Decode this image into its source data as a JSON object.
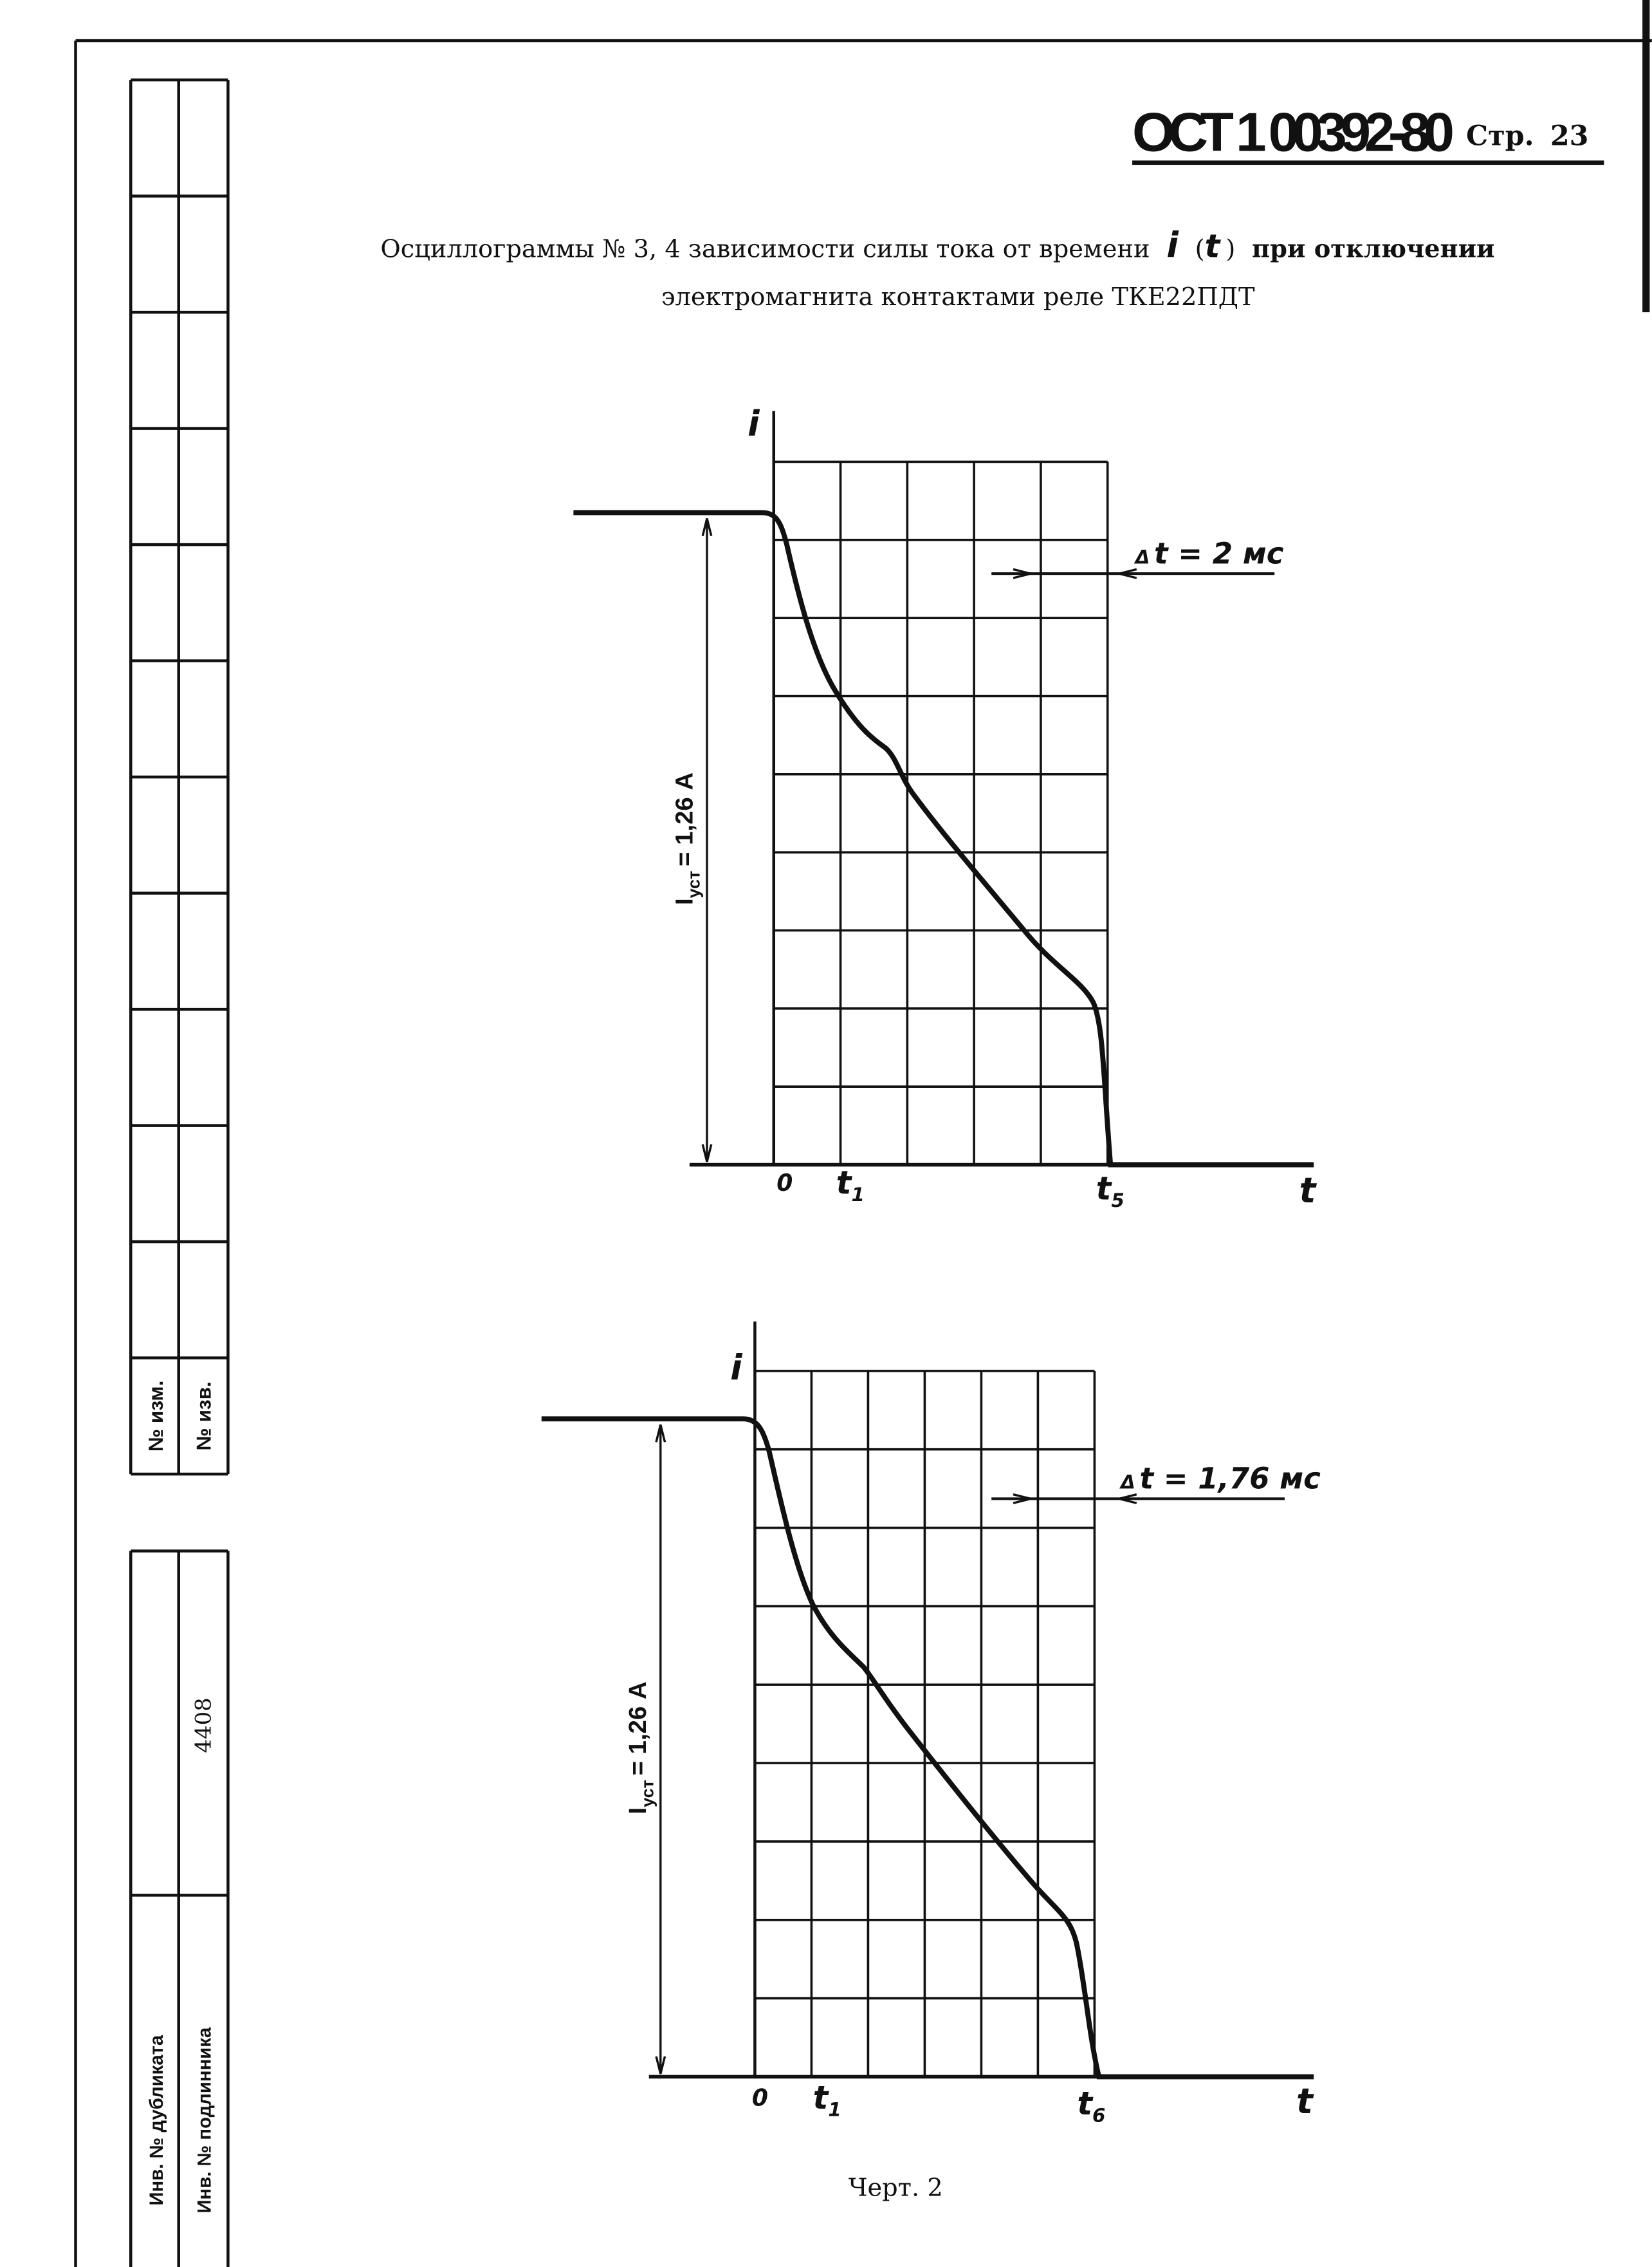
{
  "header": {
    "code": "ОСТ 1 00392-80",
    "page_label": "Стр.",
    "page_number": "23"
  },
  "title": {
    "line1": [
      "Осциллограммы № 3, 4 зависимости силы тока от времени",
      "i",
      "(",
      "t",
      ")",
      "при отключении"
    ],
    "line2": "электромагнита контактами реле ТКЕ22ПДТ"
  },
  "figures": [
    {
      "axis_i": "i",
      "axis_t": "t",
      "origin": "0",
      "t_first": "t",
      "t_first_sub": "1",
      "t_last": "t",
      "t_last_sub": "5",
      "current_symbol": "I",
      "current_sub": "уст",
      "current_value": "= 1,26 A",
      "delta": "Δ",
      "delta_text": "t = 2 мс"
    },
    {
      "axis_i": "i",
      "axis_t": "t",
      "origin": "0",
      "t_first": "t",
      "t_first_sub": "1",
      "t_last": "t",
      "t_last_sub": "6",
      "current_symbol": "I",
      "current_sub": "уст",
      "current_value": "= 1,26 A",
      "delta": "Δ",
      "delta_text": "t = 1,76 мс"
    }
  ],
  "caption": "Черт. 2",
  "stamp": {
    "change_no": "№ изм.",
    "notice_no": "№ изв.",
    "duplicate_inv": "Инв. № дубликата",
    "original_inv": "Инв. № подлинника",
    "original_inv_value": "4408"
  }
}
